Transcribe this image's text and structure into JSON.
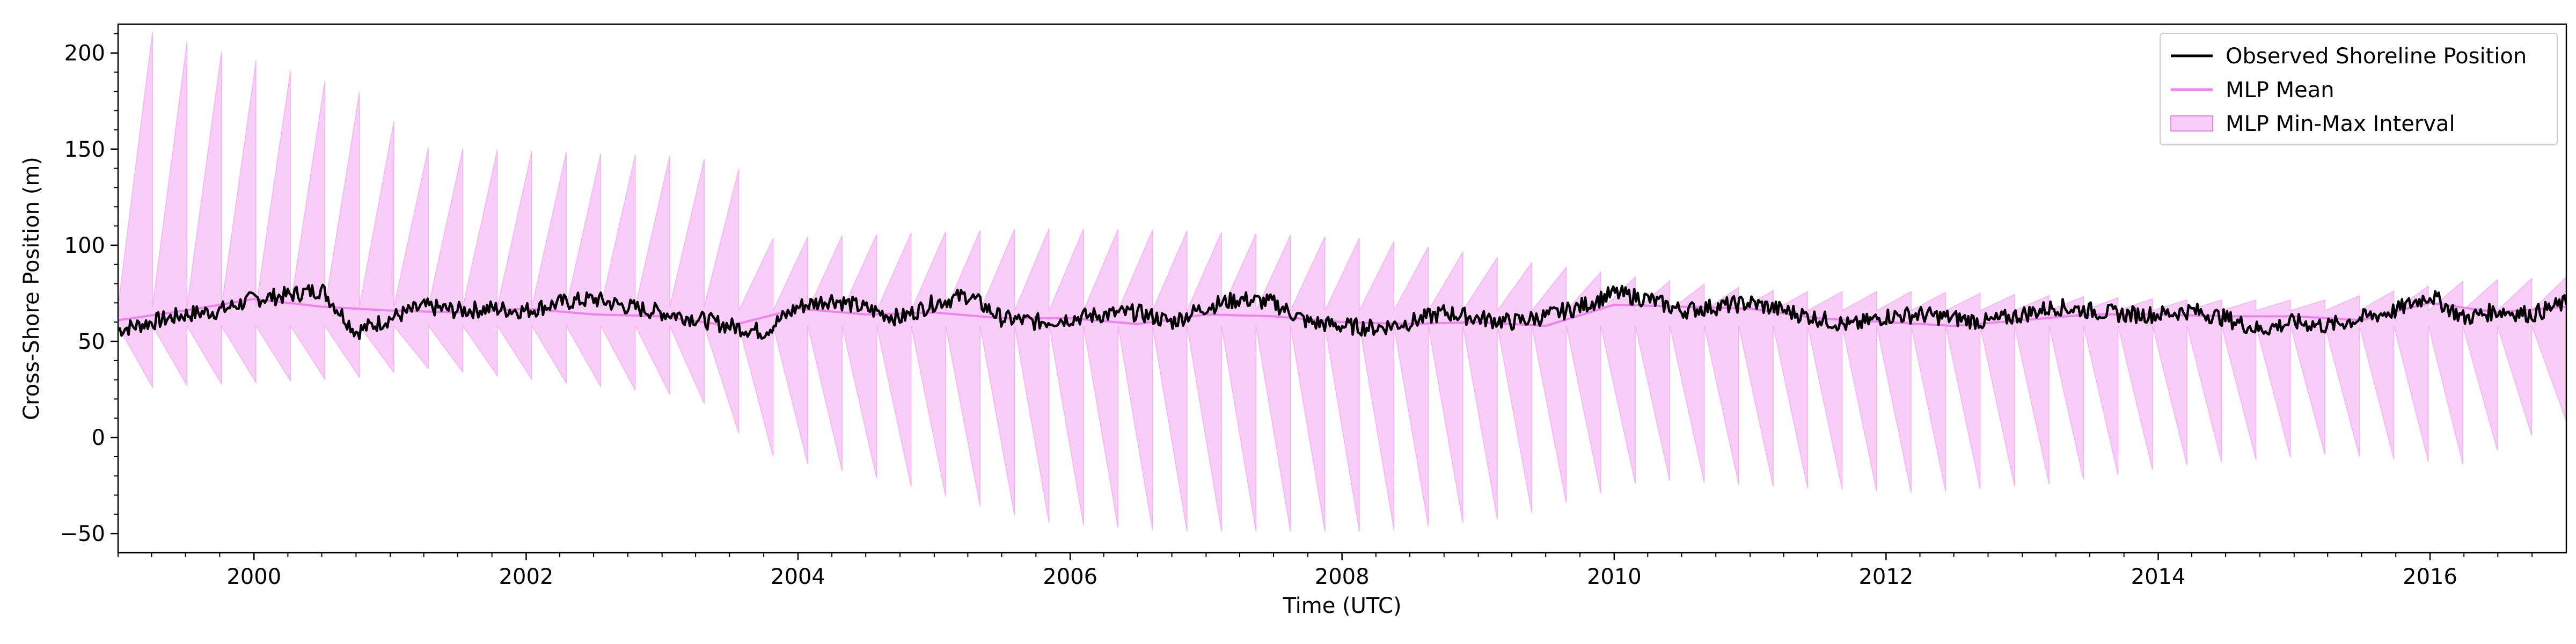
{
  "chart_data": {
    "type": "line",
    "xlabel": "Time (UTC)",
    "ylabel": "Cross-Shore Position (m)",
    "xlim": [
      "1999-01-01",
      "2017-01-01"
    ],
    "ylim": [
      -60,
      215
    ],
    "x_ticks": [
      "2000",
      "2002",
      "2004",
      "2006",
      "2008",
      "2010",
      "2012",
      "2014",
      "2016"
    ],
    "y_ticks": [
      -50,
      0,
      50,
      100,
      150,
      200
    ],
    "legend_position": "top-right",
    "legend": [
      "Observed Shoreline Position",
      "MLP Mean",
      "MLP Min-Max Interval"
    ],
    "colors": {
      "observed": "#000000",
      "mlp_mean": "#ee82ee",
      "interval_fill": "#ee82ee",
      "interval_alpha": 0.4
    },
    "series": [
      {
        "name": "Observed Shoreline Position",
        "x": [
          "1999-01-01",
          "1999-04-01",
          "1999-07-01",
          "1999-10-01",
          "2000-01-01",
          "2000-04-01",
          "2000-07-01",
          "2000-10-01",
          "2001-01-01",
          "2001-04-01",
          "2001-07-01",
          "2001-10-01",
          "2002-01-01",
          "2002-04-01",
          "2002-07-01",
          "2002-10-01",
          "2003-01-01",
          "2003-04-01",
          "2003-07-01",
          "2003-10-01",
          "2004-01-01",
          "2004-04-01",
          "2004-07-01",
          "2004-10-01",
          "2005-01-01",
          "2005-04-01",
          "2005-07-01",
          "2005-10-01",
          "2006-01-01",
          "2006-04-01",
          "2006-07-01",
          "2006-10-01",
          "2007-01-01",
          "2007-04-01",
          "2007-07-01",
          "2007-10-01",
          "2008-01-01",
          "2008-04-01",
          "2008-07-01",
          "2008-10-01",
          "2009-01-01",
          "2009-04-01",
          "2009-07-01",
          "2009-10-01",
          "2010-01-01",
          "2010-04-01",
          "2010-07-01",
          "2010-10-01",
          "2011-01-01",
          "2011-04-01",
          "2011-07-01",
          "2011-10-01",
          "2012-01-01",
          "2012-04-01",
          "2012-07-01",
          "2012-10-01",
          "2013-01-01",
          "2013-04-01",
          "2013-07-01",
          "2013-10-01",
          "2014-01-01",
          "2014-04-01",
          "2014-07-01",
          "2014-10-01",
          "2015-01-01",
          "2015-04-01",
          "2015-07-01",
          "2015-10-01",
          "2016-01-01",
          "2016-04-01",
          "2016-07-01",
          "2016-10-01",
          "2017-01-01"
        ],
        "y": [
          56,
          60,
          64,
          66,
          72,
          74,
          77,
          55,
          62,
          68,
          66,
          67,
          66,
          70,
          72,
          68,
          65,
          62,
          58,
          55,
          68,
          72,
          67,
          62,
          70,
          74,
          62,
          60,
          62,
          64,
          65,
          60,
          68,
          72,
          70,
          60,
          58,
          57,
          60,
          65,
          62,
          60,
          63,
          68,
          75,
          72,
          66,
          68,
          70,
          66,
          62,
          58,
          63,
          64,
          62,
          60,
          64,
          68,
          66,
          64,
          64,
          66,
          62,
          56,
          60,
          58,
          62,
          66,
          74,
          62,
          66,
          64,
          70
        ]
      },
      {
        "name": "MLP Mean",
        "x": [
          "1999-01-01",
          "1999-07-01",
          "2000-01-01",
          "2000-07-01",
          "2001-01-01",
          "2001-07-01",
          "2002-01-01",
          "2002-07-01",
          "2003-01-01",
          "2003-07-01",
          "2004-01-01",
          "2004-07-01",
          "2005-01-01",
          "2005-07-01",
          "2006-01-01",
          "2006-07-01",
          "2007-01-01",
          "2007-07-01",
          "2008-01-01",
          "2008-07-01",
          "2009-01-01",
          "2009-07-01",
          "2010-01-01",
          "2010-07-01",
          "2011-01-01",
          "2011-07-01",
          "2012-01-01",
          "2012-07-01",
          "2013-01-01",
          "2013-07-01",
          "2014-01-01",
          "2014-07-01",
          "2015-01-01",
          "2015-07-01",
          "2016-01-01",
          "2016-07-01",
          "2017-01-01"
        ],
        "y": [
          61,
          66,
          72,
          68,
          66,
          65,
          67,
          64,
          63,
          58,
          67,
          64,
          65,
          62,
          62,
          59,
          64,
          63,
          60,
          59,
          60,
          58,
          69,
          68,
          67,
          62,
          60,
          58,
          61,
          64,
          64,
          63,
          63,
          61,
          70,
          65,
          68
        ]
      },
      {
        "name": "MLP Min-Max Interval",
        "x": [
          "1999-01-01",
          "2000-07-01",
          "2001-01-01",
          "2003-01-01",
          "2003-07-01",
          "2004-07-01",
          "2005-07-01",
          "2006-07-01",
          "2008-01-01",
          "2009-01-01",
          "2010-01-01",
          "2011-01-01",
          "2012-01-01",
          "2013-01-01",
          "2014-01-01",
          "2015-01-01",
          "2016-01-01",
          "2017-01-01"
        ],
        "upper": [
          205,
          175,
          145,
          140,
          130,
          135,
          140,
          138,
          130,
          110,
          92,
          80,
          80,
          76,
          72,
          72,
          90,
          95
        ],
        "lower": [
          30,
          35,
          40,
          25,
          -5,
          -20,
          -40,
          -45,
          -45,
          -38,
          -18,
          -22,
          -25,
          -20,
          -10,
          -5,
          -10,
          20
        ]
      }
    ]
  }
}
